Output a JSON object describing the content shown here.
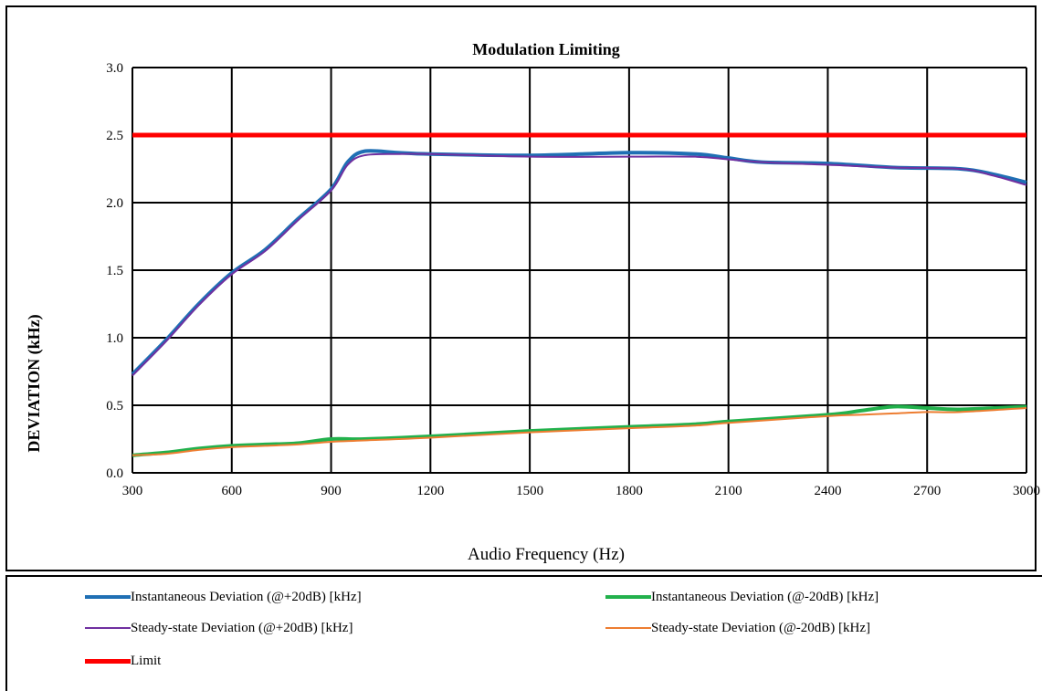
{
  "chart_data": {
    "type": "line",
    "title": "Modulation Limiting",
    "xlabel": "Audio Frequency (Hz)",
    "ylabel": "DEVIATION (kHz)",
    "xlim": [
      300,
      3000
    ],
    "ylim": [
      0.0,
      3.0
    ],
    "x_ticks": [
      "300",
      "600",
      "900",
      "1200",
      "1500",
      "1800",
      "2100",
      "2400",
      "2700",
      "3000"
    ],
    "y_ticks": [
      "0.0",
      "0.5",
      "1.0",
      "1.5",
      "2.0",
      "2.5",
      "3.0"
    ],
    "grid": true,
    "legend_position": "bottom",
    "series": [
      {
        "name": "Instantaneous Deviation (@+20dB) [kHz]",
        "color": "#1f6fb4",
        "width": 4,
        "points": [
          [
            300,
            0.73
          ],
          [
            400,
            0.98
          ],
          [
            500,
            1.25
          ],
          [
            600,
            1.48
          ],
          [
            700,
            1.65
          ],
          [
            800,
            1.88
          ],
          [
            900,
            2.1
          ],
          [
            950,
            2.3
          ],
          [
            1000,
            2.38
          ],
          [
            1100,
            2.37
          ],
          [
            1200,
            2.36
          ],
          [
            1500,
            2.35
          ],
          [
            1800,
            2.37
          ],
          [
            2000,
            2.36
          ],
          [
            2100,
            2.33
          ],
          [
            2200,
            2.3
          ],
          [
            2400,
            2.29
          ],
          [
            2600,
            2.26
          ],
          [
            2800,
            2.25
          ],
          [
            2900,
            2.21
          ],
          [
            3000,
            2.15
          ]
        ]
      },
      {
        "name": "Instantaneous Deviation (@-20dB) [kHz]",
        "color": "#22b14c",
        "width": 4,
        "points": [
          [
            300,
            0.13
          ],
          [
            400,
            0.15
          ],
          [
            500,
            0.18
          ],
          [
            600,
            0.2
          ],
          [
            700,
            0.21
          ],
          [
            800,
            0.22
          ],
          [
            900,
            0.25
          ],
          [
            1000,
            0.25
          ],
          [
            1200,
            0.27
          ],
          [
            1500,
            0.31
          ],
          [
            1800,
            0.34
          ],
          [
            2000,
            0.36
          ],
          [
            2100,
            0.38
          ],
          [
            2400,
            0.43
          ],
          [
            2500,
            0.46
          ],
          [
            2600,
            0.49
          ],
          [
            2700,
            0.48
          ],
          [
            2800,
            0.47
          ],
          [
            3000,
            0.49
          ]
        ]
      },
      {
        "name": "Steady-state Deviation (@+20dB) [kHz]",
        "color": "#7030a0",
        "width": 2,
        "points": [
          [
            300,
            0.72
          ],
          [
            400,
            0.97
          ],
          [
            500,
            1.24
          ],
          [
            600,
            1.47
          ],
          [
            700,
            1.64
          ],
          [
            800,
            1.87
          ],
          [
            900,
            2.09
          ],
          [
            950,
            2.28
          ],
          [
            1000,
            2.35
          ],
          [
            1100,
            2.36
          ],
          [
            1200,
            2.36
          ],
          [
            1500,
            2.34
          ],
          [
            1800,
            2.34
          ],
          [
            2000,
            2.34
          ],
          [
            2100,
            2.32
          ],
          [
            2200,
            2.3
          ],
          [
            2400,
            2.28
          ],
          [
            2600,
            2.26
          ],
          [
            2800,
            2.25
          ],
          [
            2900,
            2.2
          ],
          [
            3000,
            2.13
          ]
        ]
      },
      {
        "name": "Steady-state Deviation (@-20dB) [kHz]",
        "color": "#ed7d31",
        "width": 2,
        "points": [
          [
            300,
            0.13
          ],
          [
            400,
            0.14
          ],
          [
            500,
            0.17
          ],
          [
            600,
            0.19
          ],
          [
            700,
            0.2
          ],
          [
            800,
            0.21
          ],
          [
            900,
            0.23
          ],
          [
            1000,
            0.24
          ],
          [
            1200,
            0.26
          ],
          [
            1500,
            0.3
          ],
          [
            1800,
            0.33
          ],
          [
            2000,
            0.35
          ],
          [
            2100,
            0.37
          ],
          [
            2400,
            0.42
          ],
          [
            2500,
            0.43
          ],
          [
            2600,
            0.44
          ],
          [
            2700,
            0.45
          ],
          [
            2800,
            0.45
          ],
          [
            3000,
            0.48
          ]
        ]
      },
      {
        "name": "Limit",
        "color": "#ff0000",
        "width": 5,
        "points": [
          [
            300,
            2.5
          ],
          [
            3000,
            2.5
          ]
        ]
      }
    ]
  }
}
